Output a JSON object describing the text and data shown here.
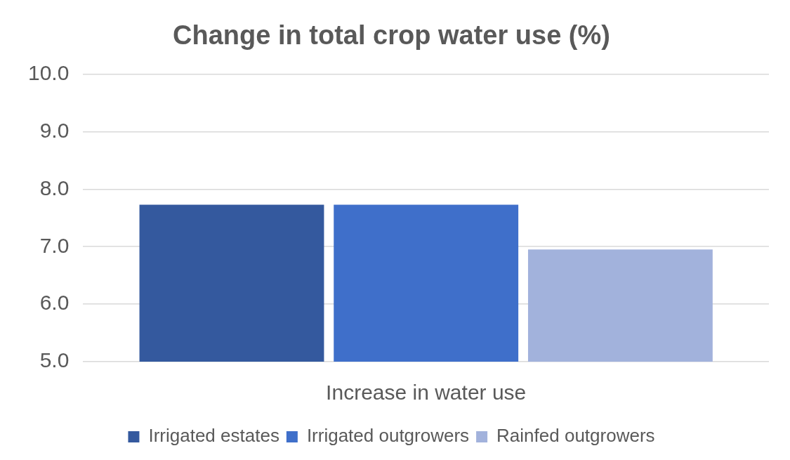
{
  "chart_data": {
    "type": "bar",
    "title": "Change in total crop water use (%)",
    "categories": [
      "Increase in water use"
    ],
    "series": [
      {
        "name": "Irrigated estates",
        "color": "#34599e",
        "values": [
          7.73
        ]
      },
      {
        "name": "Irrigated outgrowers",
        "color": "#3f6fca",
        "values": [
          7.73
        ]
      },
      {
        "name": "Rainfed outgrowers",
        "color": "#a2b2dc",
        "values": [
          6.95
        ]
      }
    ],
    "ylim": [
      5,
      10
    ],
    "yticks": [
      {
        "value": 5,
        "label": "5.0"
      },
      {
        "value": 6,
        "label": "6.0"
      },
      {
        "value": 7,
        "label": "7.0"
      },
      {
        "value": 8,
        "label": "8.0"
      },
      {
        "value": 9,
        "label": "9.0"
      },
      {
        "value": 10,
        "label": "10.0"
      }
    ],
    "grid": "y",
    "legend": "bottom"
  }
}
